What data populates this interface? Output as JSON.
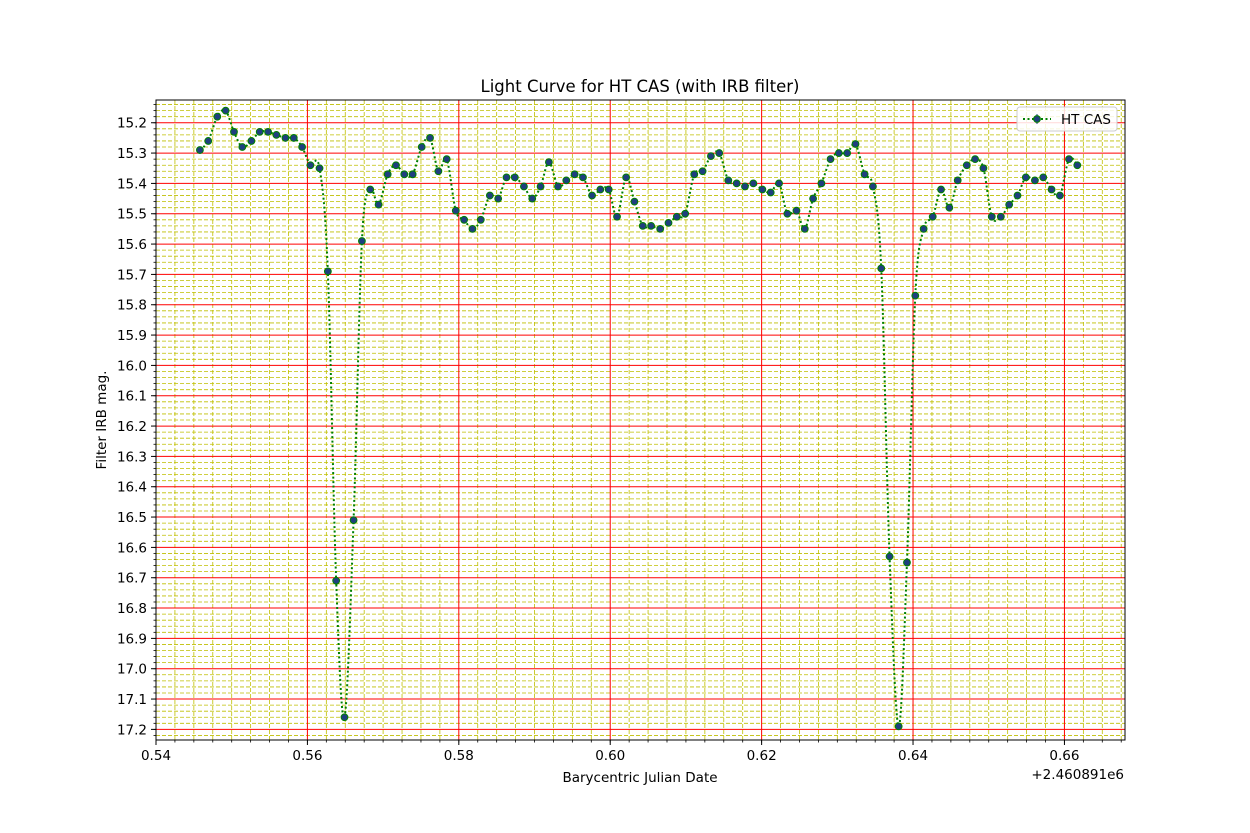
{
  "chart_data": {
    "type": "line",
    "title": "Light Curve for HT CAS (with IRB filter)",
    "xlabel": "Barycentric Julian Date",
    "ylabel": "Filter IRB mag.",
    "x_offset_label": "+2.460891e6",
    "xlim": [
      0.54,
      0.668
    ],
    "ylim": [
      17.235,
      15.125
    ],
    "y_inverted": true,
    "x_ticks": [
      0.54,
      0.56,
      0.58,
      0.6,
      0.62,
      0.64,
      0.66
    ],
    "x_tick_labels": [
      "0.54",
      "0.56",
      "0.58",
      "0.60",
      "0.62",
      "0.64",
      "0.66"
    ],
    "y_ticks": [
      15.2,
      15.3,
      15.4,
      15.5,
      15.6,
      15.7,
      15.8,
      15.9,
      16.0,
      16.1,
      16.2,
      16.3,
      16.4,
      16.5,
      16.6,
      16.7,
      16.8,
      16.9,
      17.0,
      17.1,
      17.2
    ],
    "y_tick_labels": [
      "15.2",
      "15.3",
      "15.4",
      "15.5",
      "15.6",
      "15.7",
      "15.8",
      "15.9",
      "16.0",
      "16.1",
      "16.2",
      "16.3",
      "16.4",
      "16.5",
      "16.6",
      "16.7",
      "16.8",
      "16.9",
      "17.0",
      "17.1",
      "17.2"
    ],
    "grid": {
      "major": true,
      "minor": true,
      "major_color": "#ff0000",
      "minor_color": "#bfbf00"
    },
    "legend": {
      "position": "top-right",
      "entries": [
        "HT CAS"
      ]
    },
    "series": [
      {
        "name": "HT CAS",
        "line_color": "#008000",
        "marker_color": "#1f3f7f",
        "line_style": "dotted",
        "x": [
          0.5458,
          0.5469,
          0.5481,
          0.5492,
          0.5503,
          0.5514,
          0.5526,
          0.5537,
          0.5548,
          0.5559,
          0.5571,
          0.5582,
          0.5593,
          0.5604,
          0.5616,
          0.5627,
          0.5638,
          0.5649,
          0.5661,
          0.5672,
          0.5683,
          0.5694,
          0.5706,
          0.5717,
          0.5728,
          0.5739,
          0.5751,
          0.5762,
          0.5773,
          0.5784,
          0.5796,
          0.5807,
          0.5818,
          0.5829,
          0.5841,
          0.5852,
          0.5863,
          0.5874,
          0.5886,
          0.5897,
          0.5908,
          0.5919,
          0.5931,
          0.5942,
          0.5953,
          0.5964,
          0.5976,
          0.5987,
          0.5998,
          0.6009,
          0.6021,
          0.6032,
          0.6043,
          0.6054,
          0.6066,
          0.6077,
          0.6088,
          0.6099,
          0.6111,
          0.6122,
          0.6133,
          0.6144,
          0.6156,
          0.6167,
          0.6178,
          0.6189,
          0.6201,
          0.6212,
          0.6223,
          0.6234,
          0.6246,
          0.6257,
          0.6268,
          0.6279,
          0.6291,
          0.6302,
          0.6313,
          0.6324,
          0.6336,
          0.6347,
          0.6358,
          0.6369,
          0.6381,
          0.6392,
          0.6403,
          0.6414,
          0.6426,
          0.6437,
          0.6448,
          0.6459,
          0.6471,
          0.6482,
          0.6493,
          0.6504,
          0.6516,
          0.6527,
          0.6538,
          0.6549,
          0.6561,
          0.6572,
          0.6583,
          0.6594,
          0.6606,
          0.6617
        ],
        "y": [
          15.29,
          15.26,
          15.18,
          15.16,
          15.23,
          15.28,
          15.26,
          15.23,
          15.23,
          15.24,
          15.25,
          15.25,
          15.28,
          15.34,
          15.35,
          15.69,
          16.71,
          17.16,
          16.51,
          15.59,
          15.42,
          15.47,
          15.37,
          15.34,
          15.37,
          15.37,
          15.28,
          15.25,
          15.36,
          15.32,
          15.49,
          15.52,
          15.55,
          15.52,
          15.44,
          15.45,
          15.38,
          15.38,
          15.41,
          15.45,
          15.41,
          15.33,
          15.41,
          15.39,
          15.37,
          15.38,
          15.44,
          15.42,
          15.42,
          15.51,
          15.38,
          15.46,
          15.54,
          15.54,
          15.55,
          15.53,
          15.51,
          15.5,
          15.37,
          15.36,
          15.31,
          15.3,
          15.39,
          15.4,
          15.41,
          15.4,
          15.42,
          15.43,
          15.4,
          15.5,
          15.49,
          15.55,
          15.45,
          15.4,
          15.32,
          15.3,
          15.3,
          15.27,
          15.37,
          15.41,
          15.68,
          16.63,
          17.19,
          16.65,
          15.77,
          15.55,
          15.51,
          15.42,
          15.48,
          15.39,
          15.34,
          15.32,
          15.35,
          15.51,
          15.51,
          15.47,
          15.44,
          15.38,
          15.39,
          15.38,
          15.42,
          15.44,
          15.32,
          15.34
        ]
      }
    ]
  }
}
